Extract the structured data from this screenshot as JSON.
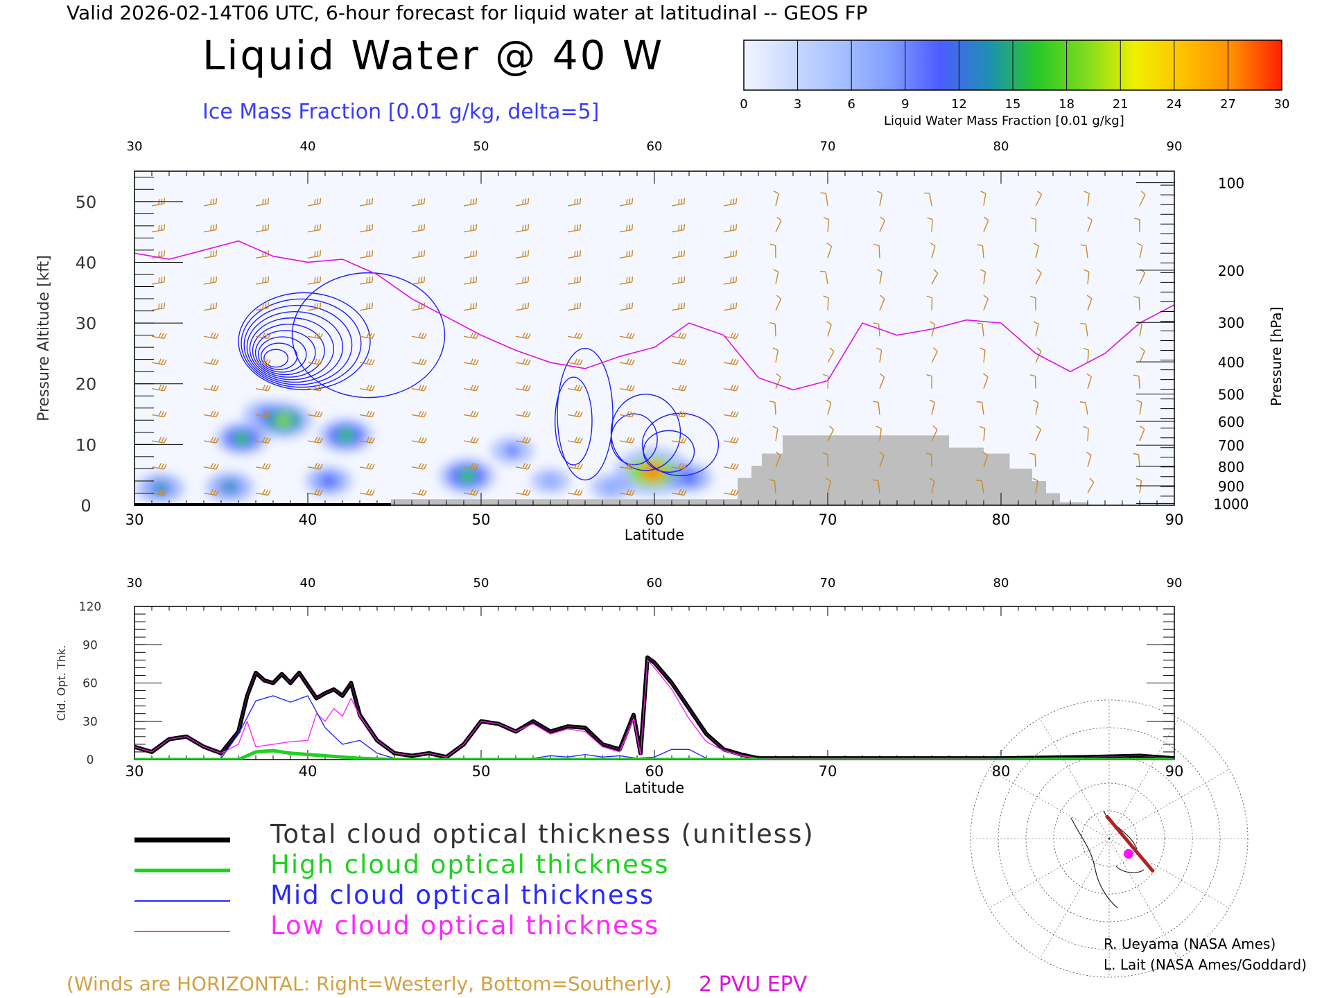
{
  "header": {
    "line": "Valid 2026-02-14T06 UTC, 6-hour forecast for liquid water at latitudinal -- GEOS FP",
    "title": "Liquid Water @ 40 W",
    "subtitle": "Ice Mass Fraction [0.01 g/kg, delta=5]"
  },
  "colorbar": {
    "label": "Liquid Water Mass Fraction [0.01 g/kg]",
    "ticks": [
      "0",
      "3",
      "6",
      "9",
      "12",
      "15",
      "18",
      "21",
      "24",
      "27",
      "30"
    ],
    "colors": [
      "#f2f6ff",
      "#c9d9ff",
      "#a6c0ff",
      "#7f9dff",
      "#4d5cff",
      "#1e8fb4",
      "#28c828",
      "#7fdc1e",
      "#f0f000",
      "#ffc000",
      "#ff8c00",
      "#ff2000"
    ]
  },
  "chart_data": [
    {
      "type": "contour",
      "name": "Liquid water cross-section",
      "x": {
        "label": "Latitude",
        "min": 30,
        "max": 90,
        "ticks": [
          30,
          40,
          50,
          60,
          70,
          80,
          90
        ]
      },
      "y_left": {
        "label": "Pressure Altitude [kft]",
        "min": 0,
        "max": 55,
        "ticks": [
          0,
          10,
          20,
          30,
          40,
          50
        ]
      },
      "y_right": {
        "label": "Pressure [hPa]",
        "ticks": [
          {
            "p": 100,
            "kft": 53.1
          },
          {
            "p": 200,
            "kft": 38.7
          },
          {
            "p": 300,
            "kft": 30.1
          },
          {
            "p": 400,
            "kft": 23.6
          },
          {
            "p": 500,
            "kft": 18.3
          },
          {
            "p": 600,
            "kft": 13.8
          },
          {
            "p": 700,
            "kft": 9.9
          },
          {
            "p": 800,
            "kft": 6.4
          },
          {
            "p": 900,
            "kft": 3.2
          },
          {
            "p": 1000,
            "kft": 0.3
          }
        ]
      },
      "liquid_water_blobs": [
        {
          "lat": 31.5,
          "kft": 2.8,
          "value": 13
        },
        {
          "lat": 35.5,
          "kft": 3.0,
          "value": 13
        },
        {
          "lat": 36.2,
          "kft": 11.0,
          "value": 15
        },
        {
          "lat": 37.5,
          "kft": 15.0,
          "value": 10
        },
        {
          "lat": 38.6,
          "kft": 14.0,
          "value": 18
        },
        {
          "lat": 41.2,
          "kft": 4.0,
          "value": 12
        },
        {
          "lat": 42.2,
          "kft": 11.5,
          "value": 16
        },
        {
          "lat": 49.2,
          "kft": 4.8,
          "value": 17
        },
        {
          "lat": 51.8,
          "kft": 9.0,
          "value": 10
        },
        {
          "lat": 54.0,
          "kft": 4.0,
          "value": 8
        },
        {
          "lat": 57.5,
          "kft": 3.0,
          "value": 9
        },
        {
          "lat": 59.9,
          "kft": 5.5,
          "value": 27
        },
        {
          "lat": 62.0,
          "kft": 4.5,
          "value": 12
        }
      ],
      "pvu_2_line_kft": [
        [
          30,
          41.5
        ],
        [
          32,
          40.5
        ],
        [
          34,
          42
        ],
        [
          36,
          43.5
        ],
        [
          38,
          41
        ],
        [
          40,
          40
        ],
        [
          42,
          40.5
        ],
        [
          44,
          38
        ],
        [
          46,
          34
        ],
        [
          48,
          31
        ],
        [
          50,
          28
        ],
        [
          52,
          25.5
        ],
        [
          54,
          23.5
        ],
        [
          56,
          22.5
        ],
        [
          58,
          24.5
        ],
        [
          60,
          26
        ],
        [
          62,
          30
        ],
        [
          64,
          28
        ],
        [
          66,
          21
        ],
        [
          68,
          19
        ],
        [
          70,
          20.5
        ],
        [
          72,
          30
        ],
        [
          74,
          28
        ],
        [
          76,
          29
        ],
        [
          78,
          30.5
        ],
        [
          80,
          30
        ],
        [
          82,
          25
        ],
        [
          84,
          22
        ],
        [
          86,
          25
        ],
        [
          88,
          30
        ],
        [
          90,
          33
        ]
      ],
      "terrain": [
        [
          30,
          0.0
        ],
        [
          44.8,
          0.0
        ],
        [
          44.8,
          1.0
        ],
        [
          64.8,
          1.0
        ],
        [
          64.8,
          4.5
        ],
        [
          65.6,
          4.5
        ],
        [
          65.6,
          6.5
        ],
        [
          66.2,
          6.5
        ],
        [
          66.2,
          8.5
        ],
        [
          67.4,
          8.5
        ],
        [
          67.4,
          11.5
        ],
        [
          77,
          11.5
        ],
        [
          77,
          9.5
        ],
        [
          79,
          9.5
        ],
        [
          79,
          8.5
        ],
        [
          80.5,
          8.5
        ],
        [
          80.5,
          6.0
        ],
        [
          81.8,
          6.0
        ],
        [
          81.8,
          4.0
        ],
        [
          82.6,
          4.0
        ],
        [
          82.6,
          2.0
        ],
        [
          83.4,
          2.0
        ],
        [
          83.4,
          0.5
        ],
        [
          85,
          0.5
        ]
      ]
    },
    {
      "type": "line",
      "name": "Cloud optical thickness",
      "x": {
        "label": "Latitude",
        "min": 30,
        "max": 90,
        "ticks": [
          30,
          40,
          50,
          60,
          70,
          80,
          90
        ]
      },
      "y": {
        "label": "Cld. Opt. Thk.",
        "min": 0,
        "max": 120,
        "ticks": [
          0,
          30,
          60,
          90,
          120
        ]
      },
      "series": [
        {
          "name": "Total cloud optical thickness (unitless)",
          "color": "#000000",
          "points": [
            [
              30,
              10
            ],
            [
              31,
              6
            ],
            [
              32,
              16
            ],
            [
              33,
              18
            ],
            [
              34,
              10
            ],
            [
              35,
              5
            ],
            [
              36,
              22
            ],
            [
              36.5,
              50
            ],
            [
              37,
              68
            ],
            [
              37.5,
              62
            ],
            [
              38,
              60
            ],
            [
              38.5,
              67
            ],
            [
              39,
              60
            ],
            [
              39.5,
              68
            ],
            [
              40,
              58
            ],
            [
              40.5,
              48
            ],
            [
              41,
              52
            ],
            [
              41.5,
              55
            ],
            [
              42,
              50
            ],
            [
              42.5,
              60
            ],
            [
              43,
              35
            ],
            [
              44,
              15
            ],
            [
              45,
              5
            ],
            [
              46,
              3
            ],
            [
              47,
              5
            ],
            [
              48,
              2
            ],
            [
              49,
              12
            ],
            [
              50,
              30
            ],
            [
              51,
              28
            ],
            [
              52,
              22
            ],
            [
              53,
              30
            ],
            [
              54,
              22
            ],
            [
              55,
              26
            ],
            [
              56,
              25
            ],
            [
              57,
              12
            ],
            [
              58,
              8
            ],
            [
              58.8,
              35
            ],
            [
              59.2,
              5
            ],
            [
              59.6,
              80
            ],
            [
              60,
              76
            ],
            [
              61,
              60
            ],
            [
              62,
              40
            ],
            [
              63,
              20
            ],
            [
              64,
              8
            ],
            [
              65,
              4
            ],
            [
              66,
              1
            ],
            [
              70,
              1
            ],
            [
              80,
              1
            ],
            [
              85,
              2
            ],
            [
              88,
              3
            ],
            [
              90,
              1
            ]
          ]
        },
        {
          "name": "High cloud optical thickness",
          "color": "#1ed21e",
          "points": [
            [
              30,
              0
            ],
            [
              36,
              0
            ],
            [
              37,
              6
            ],
            [
              38,
              7
            ],
            [
              39,
              5
            ],
            [
              40,
              4
            ],
            [
              41,
              3
            ],
            [
              42,
              2
            ],
            [
              43,
              1
            ],
            [
              45,
              0
            ],
            [
              90,
              0
            ]
          ]
        },
        {
          "name": "Mid cloud optical thickness",
          "color": "#2828ff",
          "points": [
            [
              30,
              0
            ],
            [
              35,
              1
            ],
            [
              36,
              20
            ],
            [
              37,
              46
            ],
            [
              38,
              50
            ],
            [
              39,
              45
            ],
            [
              40,
              50
            ],
            [
              41,
              25
            ],
            [
              42,
              12
            ],
            [
              43,
              15
            ],
            [
              44,
              5
            ],
            [
              45,
              1
            ],
            [
              50,
              1
            ],
            [
              53,
              1
            ],
            [
              54,
              3
            ],
            [
              55,
              2
            ],
            [
              56,
              4
            ],
            [
              57,
              2
            ],
            [
              58,
              3
            ],
            [
              59,
              1
            ],
            [
              60,
              2
            ],
            [
              61,
              8
            ],
            [
              62,
              8
            ],
            [
              63,
              1
            ],
            [
              66,
              0
            ],
            [
              90,
              0
            ]
          ]
        },
        {
          "name": "Low cloud optical thickness",
          "color": "#ff28ff",
          "points": [
            [
              30,
              10
            ],
            [
              31,
              6
            ],
            [
              32,
              16
            ],
            [
              33,
              18
            ],
            [
              34,
              10
            ],
            [
              35,
              5
            ],
            [
              36,
              12
            ],
            [
              36.5,
              30
            ],
            [
              37,
              10
            ],
            [
              38,
              12
            ],
            [
              39,
              14
            ],
            [
              40,
              15
            ],
            [
              40.5,
              36
            ],
            [
              41,
              30
            ],
            [
              41.5,
              40
            ],
            [
              42,
              34
            ],
            [
              42.5,
              48
            ],
            [
              43,
              34
            ],
            [
              44,
              15
            ],
            [
              45,
              5
            ],
            [
              46,
              3
            ],
            [
              47,
              5
            ],
            [
              48,
              2
            ],
            [
              49,
              12
            ],
            [
              50,
              30
            ],
            [
              51,
              28
            ],
            [
              52,
              22
            ],
            [
              53,
              28
            ],
            [
              54,
              20
            ],
            [
              55,
              24
            ],
            [
              56,
              22
            ],
            [
              57,
              10
            ],
            [
              58,
              6
            ],
            [
              58.8,
              32
            ],
            [
              59.2,
              4
            ],
            [
              59.6,
              78
            ],
            [
              60,
              72
            ],
            [
              61,
              55
            ],
            [
              62,
              32
            ],
            [
              63,
              14
            ],
            [
              64,
              7
            ],
            [
              65,
              3
            ],
            [
              66,
              1
            ],
            [
              90,
              1
            ]
          ]
        }
      ]
    }
  ],
  "legend": {
    "items": [
      {
        "label": "Total cloud optical thickness (unitless)",
        "color": "#000000",
        "width": 7
      },
      {
        "label": "High cloud optical thickness",
        "color": "#1ed21e",
        "width": 5
      },
      {
        "label": "Mid cloud optical thickness",
        "color": "#2828ff",
        "width": 2
      },
      {
        "label": "Low cloud optical thickness",
        "color": "#ff28ff",
        "width": 2
      }
    ]
  },
  "notes": {
    "winds": "(Winds are HORIZONTAL: Right=Westerly, Bottom=Southerly.)",
    "pvu": "2 PVU EPV"
  },
  "credits": {
    "line1": "R. Ueyama (NASA Ames)",
    "line2": "L. Lait (NASA Ames/Goddard)"
  }
}
